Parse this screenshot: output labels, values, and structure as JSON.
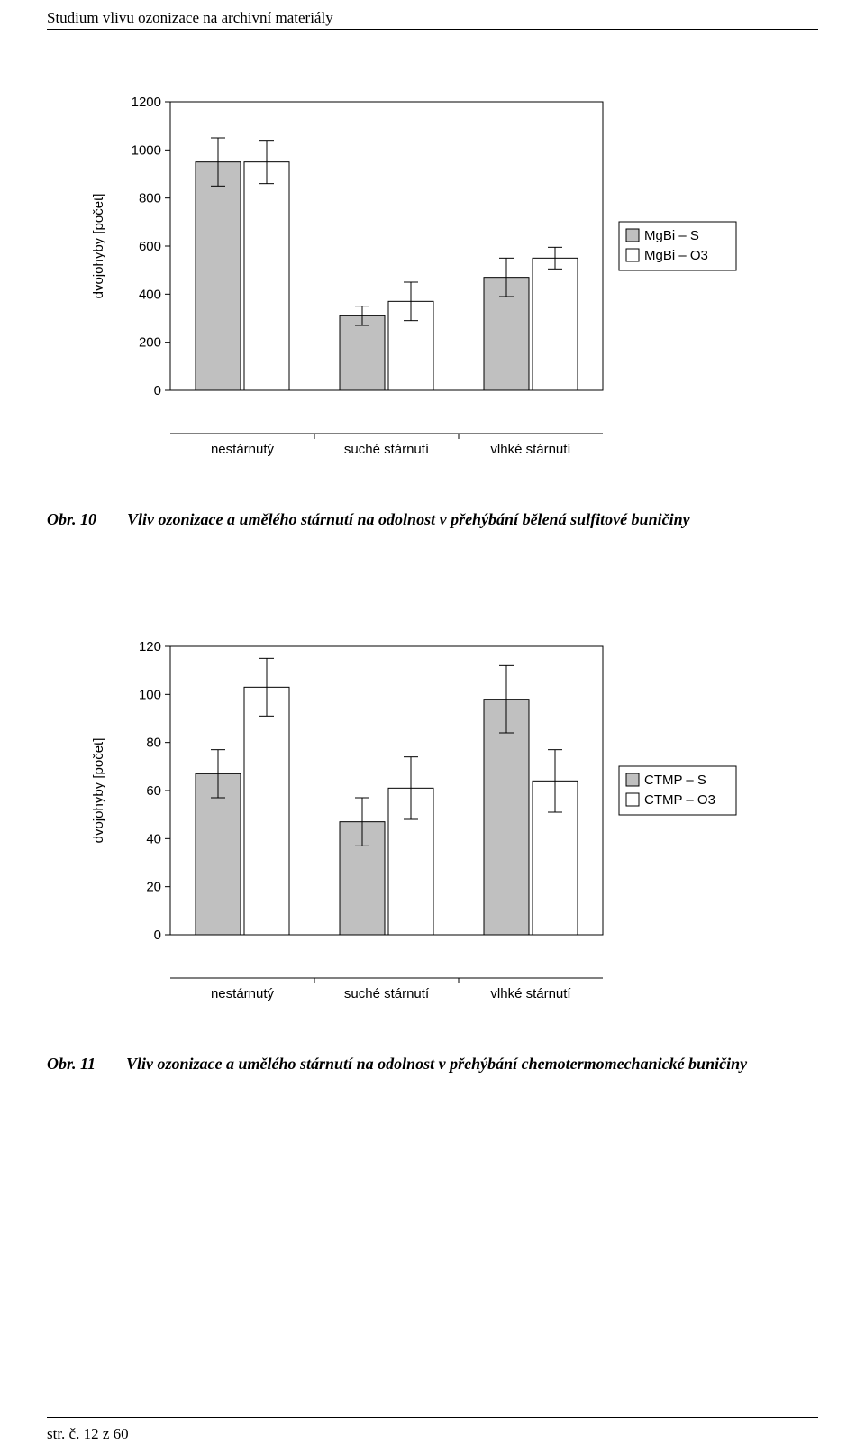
{
  "page": {
    "running_head": "Studium vlivu ozonizace na archivní materiály",
    "footer": "str. č. 12 z 60"
  },
  "captions": {
    "fig10_num": "Obr. 10",
    "fig10_text": "Vliv ozonizace a umělého stárnutí na odolnost v přehýbání bělená sulfitové buničiny",
    "fig11_num": "Obr. 11",
    "fig11_text": "Vliv ozonizace a umělého stárnutí na odolnost v přehýbání chemotermomechanické buničiny"
  },
  "chart1": {
    "type": "bar",
    "ylabel": "dvojohyby [počet]",
    "categories": [
      "nestárnutý",
      "suché stárnutí",
      "vlhké stárnutí"
    ],
    "series": [
      {
        "label": "MgBi – S",
        "fill": "#c0c0c0",
        "values": [
          950,
          310,
          470
        ],
        "err": [
          100,
          40,
          80
        ]
      },
      {
        "label": "MgBi – O3",
        "fill": "#ffffff",
        "values": [
          950,
          370,
          550
        ],
        "err": [
          90,
          80,
          45
        ]
      }
    ],
    "ylim": [
      0,
      1200
    ],
    "ytick_step": 200,
    "plot_bg": "#ffffff",
    "axis_color": "#000000",
    "grid_color": "#808080",
    "tick_fontsize": 15,
    "label_fontsize": 15,
    "legend_fontsize": 15
  },
  "chart2": {
    "type": "bar",
    "ylabel": "dvojohyby [počet]",
    "categories": [
      "nestárnutý",
      "suché stárnutí",
      "vlhké stárnutí"
    ],
    "series": [
      {
        "label": "CTMP – S",
        "fill": "#c0c0c0",
        "values": [
          67,
          47,
          98
        ],
        "err": [
          10,
          10,
          14
        ]
      },
      {
        "label": "CTMP – O3",
        "fill": "#ffffff",
        "values": [
          103,
          61,
          64
        ],
        "err": [
          12,
          13,
          13
        ]
      }
    ],
    "ylim": [
      0,
      120
    ],
    "ytick_step": 20,
    "plot_bg": "#ffffff",
    "axis_color": "#000000",
    "grid_color": "#808080",
    "tick_fontsize": 15,
    "label_fontsize": 15,
    "legend_fontsize": 15
  }
}
